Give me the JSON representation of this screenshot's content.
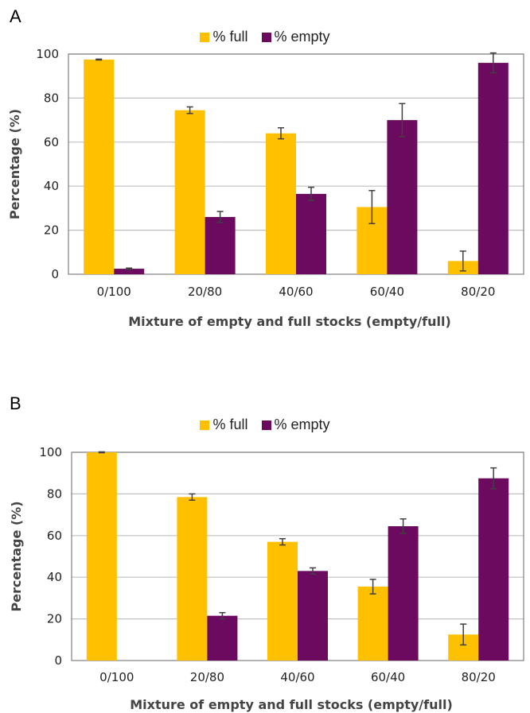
{
  "chart_data": [
    {
      "panel": "A",
      "type": "bar",
      "title": "",
      "xlabel": "Mixture of empty and full stocks (empty/full)",
      "ylabel": "Percentage (%)",
      "ylim": [
        0,
        100
      ],
      "yticks": [
        0,
        20,
        40,
        60,
        80,
        100
      ],
      "grid": true,
      "legend_position": "top-center",
      "categories": [
        "0/100",
        "20/80",
        "40/60",
        "60/40",
        "80/20"
      ],
      "series": [
        {
          "name": "% full",
          "color": "#FFC000",
          "values": [
            97.5,
            74.5,
            64,
            30.5,
            6
          ],
          "errors": [
            0.2,
            1.5,
            2.5,
            7.5,
            4.5
          ]
        },
        {
          "name": "% empty",
          "color": "#6B0A5F",
          "values": [
            2.5,
            26,
            36.5,
            70,
            96
          ],
          "errors": [
            0.3,
            2.5,
            3,
            7.5,
            4.5
          ]
        }
      ]
    },
    {
      "panel": "B",
      "type": "bar",
      "title": "",
      "xlabel": "Mixture of empty and full stocks (empty/full)",
      "ylabel": "Percentage (%)",
      "ylim": [
        0,
        100
      ],
      "yticks": [
        0,
        20,
        40,
        60,
        80,
        100
      ],
      "grid": true,
      "legend_position": "top-center",
      "categories": [
        "0/100",
        "20/80",
        "40/60",
        "60/40",
        "80/20"
      ],
      "series": [
        {
          "name": "% full",
          "color": "#FFC000",
          "values": [
            100,
            78.5,
            57,
            35.5,
            12.5
          ],
          "errors": [
            0.2,
            1.5,
            1.5,
            3.5,
            5
          ]
        },
        {
          "name": "% empty",
          "color": "#6B0A5F",
          "values": [
            0,
            21.5,
            43,
            64.5,
            87.5
          ],
          "errors": [
            0,
            1.5,
            1.5,
            3.5,
            5
          ]
        }
      ]
    }
  ]
}
